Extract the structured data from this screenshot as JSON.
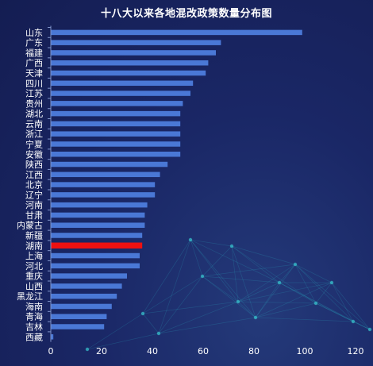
{
  "chart_data": {
    "type": "bar",
    "orientation": "horizontal",
    "title": "十八大以来各地混改政策数量分布图",
    "xlabel": "",
    "ylabel": "",
    "xlim": [
      0,
      120
    ],
    "xticks": [
      "0",
      "20",
      "40",
      "60",
      "80",
      "100",
      "120"
    ],
    "grid": false,
    "categories": [
      "山东",
      "广东",
      "福建",
      "广西",
      "天津",
      "四川",
      "江苏",
      "贵州",
      "湖北",
      "云南",
      "浙江",
      "宁夏",
      "安徽",
      "陕西",
      "江西",
      "北京",
      "辽宁",
      "河南",
      "甘肃",
      "内蒙古",
      "新疆",
      "湖南",
      "上海",
      "河北",
      "重庆",
      "山西",
      "黑龙江",
      "海南",
      "青海",
      "吉林",
      "西藏"
    ],
    "values": [
      99,
      67,
      65,
      62,
      61,
      56,
      55,
      52,
      51,
      51,
      51,
      51,
      51,
      46,
      43,
      41,
      41,
      38,
      37,
      37,
      36,
      36,
      35,
      35,
      30,
      28,
      26,
      24,
      22,
      21,
      1
    ],
    "highlight": "湖南",
    "colors": {
      "bar": "#4a78d6",
      "bar_highlight": "#ee1111",
      "axis": "#7f93c9",
      "text": "#ffffff"
    }
  }
}
